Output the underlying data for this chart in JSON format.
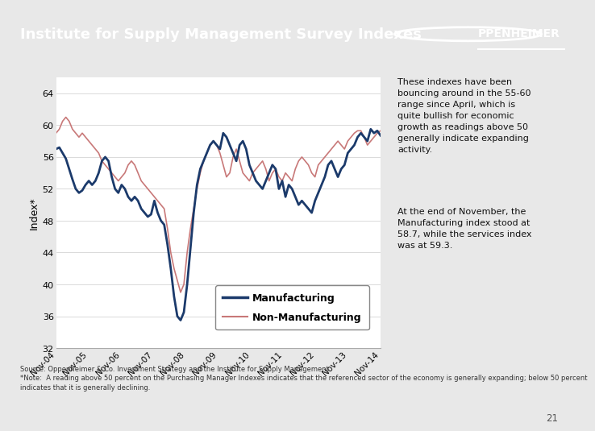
{
  "title": "Institute for Supply Management Survey Indexes",
  "header_bg_color": "#1b3a6b",
  "header_text_color": "#ffffff",
  "bg_color": "#e8e8e8",
  "chart_bg_color": "#ffffff",
  "ylabel": "Index*",
  "ylim": [
    32,
    66
  ],
  "yticks": [
    32,
    36,
    40,
    44,
    48,
    52,
    56,
    60,
    64
  ],
  "source_text": "Source: Oppenheimer & Co. Investment Strategy and the Institute for Supply Management.\n*Note:  A reading above 50 percent on the Purchasing Manager Indexes indicates that the referenced sector of the economy is generally expanding; below 50 percent\nindicates that it is generally declining.",
  "annotation_text1": "These indexes have been\nbouncing around in the 55-60\nrange since April, which is\nquite bullish for economic\ngrowth as readings above 50\ngenerally indicate expanding\nactivity.",
  "annotation_text2": "At the end of November, the\nManufacturing index stood at\n58.7, while the services index\nwas at 59.3.",
  "page_number": "21",
  "xtick_labels": [
    "Nov-04",
    "Nov-05",
    "Nov-06",
    "Nov-07",
    "Nov-08",
    "Nov-09",
    "Nov-10",
    "Nov-11",
    "Nov-12",
    "Nov-13",
    "Nov-14"
  ],
  "manufacturing_color": "#1b3a6b",
  "nonmanufacturing_color": "#c87878",
  "manufacturing_label": "Manufacturing",
  "nonmanufacturing_label": "Non-Manufacturing",
  "manufacturing": [
    57.0,
    57.2,
    56.5,
    55.8,
    54.5,
    53.2,
    52.0,
    51.5,
    51.8,
    52.5,
    53.0,
    52.5,
    53.0,
    54.0,
    55.5,
    56.0,
    55.5,
    53.5,
    52.0,
    51.5,
    52.5,
    52.0,
    51.0,
    50.5,
    51.0,
    50.5,
    49.5,
    49.0,
    48.5,
    48.8,
    50.5,
    49.0,
    48.0,
    47.5,
    45.0,
    42.0,
    38.5,
    36.0,
    35.5,
    36.5,
    40.0,
    44.5,
    49.0,
    52.5,
    54.5,
    55.5,
    56.5,
    57.5,
    58.0,
    57.5,
    57.0,
    59.0,
    58.5,
    57.5,
    56.5,
    55.5,
    57.5,
    58.0,
    57.0,
    55.0,
    54.0,
    53.0,
    52.5,
    52.0,
    53.0,
    54.0,
    55.0,
    54.5,
    52.0,
    53.0,
    51.0,
    52.5,
    52.0,
    51.0,
    50.0,
    50.5,
    50.0,
    49.5,
    49.0,
    50.5,
    51.5,
    52.5,
    53.5,
    55.0,
    55.5,
    54.5,
    53.5,
    54.5,
    55.0,
    56.5,
    57.0,
    57.5,
    58.5,
    59.0,
    58.5,
    58.0,
    59.5,
    59.0,
    59.3,
    58.7
  ],
  "nonmanufacturing": [
    59.0,
    59.5,
    60.5,
    61.0,
    60.5,
    59.5,
    59.0,
    58.5,
    59.0,
    58.5,
    58.0,
    57.5,
    57.0,
    56.5,
    55.5,
    55.0,
    54.5,
    54.0,
    53.5,
    53.0,
    53.5,
    54.0,
    55.0,
    55.5,
    55.0,
    54.0,
    53.0,
    52.5,
    52.0,
    51.5,
    51.0,
    50.5,
    50.0,
    49.5,
    47.0,
    44.0,
    42.0,
    40.5,
    39.0,
    40.0,
    44.0,
    47.0,
    49.5,
    52.0,
    54.0,
    55.5,
    56.5,
    57.5,
    58.0,
    57.5,
    56.5,
    55.0,
    53.5,
    54.0,
    56.0,
    57.0,
    55.5,
    54.0,
    53.5,
    53.0,
    54.0,
    54.5,
    55.0,
    55.5,
    54.5,
    53.0,
    54.0,
    54.5,
    53.5,
    53.0,
    54.0,
    53.5,
    53.0,
    54.5,
    55.5,
    56.0,
    55.5,
    55.0,
    54.0,
    53.5,
    55.0,
    55.5,
    56.0,
    56.5,
    57.0,
    57.5,
    58.0,
    57.5,
    57.0,
    58.0,
    58.5,
    59.0,
    59.3,
    59.3,
    58.5,
    57.5,
    58.0,
    58.5,
    59.0,
    59.3
  ]
}
